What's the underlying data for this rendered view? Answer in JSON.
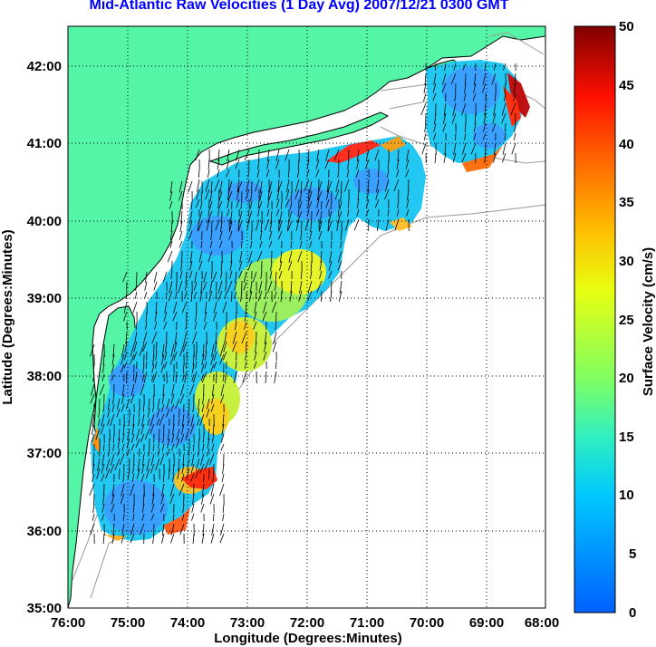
{
  "title": "Mid-Atlantic Raw Velocities (1 Day Avg) 2007/12/21 0300 GMT",
  "xlabel": "Longitude (Degrees:Minutes)",
  "ylabel": "Latitude (Degrees:Minutes)",
  "colorbar_label": "Surface Velocity (cm/s)",
  "x_ticks": [
    "76:00",
    "75:00",
    "74:00",
    "73:00",
    "72:00",
    "71:00",
    "70:00",
    "69:00",
    "68:00"
  ],
  "y_ticks": [
    "42:00",
    "41:00",
    "40:00",
    "39:00",
    "38:00",
    "37:00",
    "36:00",
    "35:00"
  ],
  "colorbar_ticks": [
    "50",
    "45",
    "40",
    "35",
    "30",
    "25",
    "20",
    "15",
    "10",
    "5",
    "0"
  ],
  "map": {
    "lon_range": [
      -76,
      -68
    ],
    "lat_range": [
      35,
      42.5
    ],
    "velocity_range_cms": [
      0,
      50
    ],
    "grid": "dotted",
    "land_color": "#55f5a8",
    "coastline_color": "#000000",
    "bathymetry_color": "#999999",
    "title_color": "#0000ff"
  }
}
